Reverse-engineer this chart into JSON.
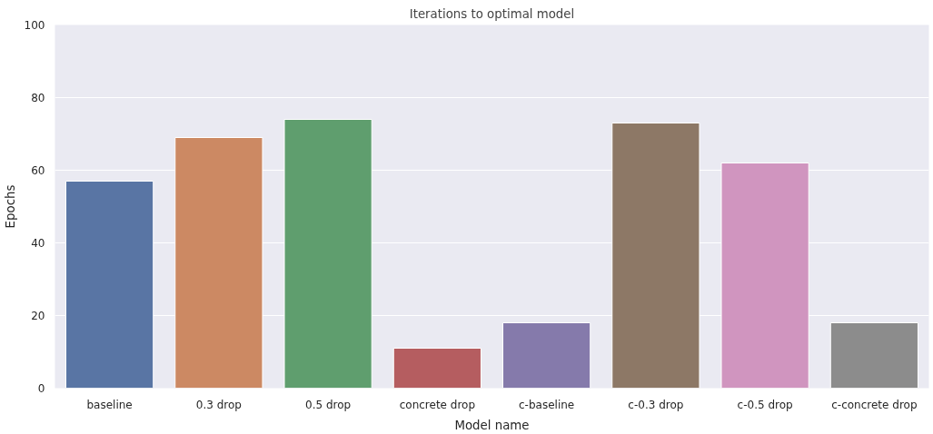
{
  "chart_data": {
    "type": "bar",
    "title": "Iterations to optimal model",
    "xlabel": "Model name",
    "ylabel": "Epochs",
    "categories": [
      "baseline",
      "0.3 drop",
      "0.5 drop",
      "concrete drop",
      "c-baseline",
      "c-0.3 drop",
      "c-0.5 drop",
      "c-concrete drop"
    ],
    "values": [
      57,
      69,
      74,
      11,
      18,
      73,
      62,
      18
    ],
    "colors": [
      "#5975a4",
      "#cc8963",
      "#5f9e6e",
      "#b55d60",
      "#857aab",
      "#8d7866",
      "#d095bf",
      "#8c8c8c"
    ],
    "ylim": [
      0,
      100
    ],
    "yticks": [
      0,
      20,
      40,
      60,
      80,
      100
    ],
    "grid": "y"
  }
}
